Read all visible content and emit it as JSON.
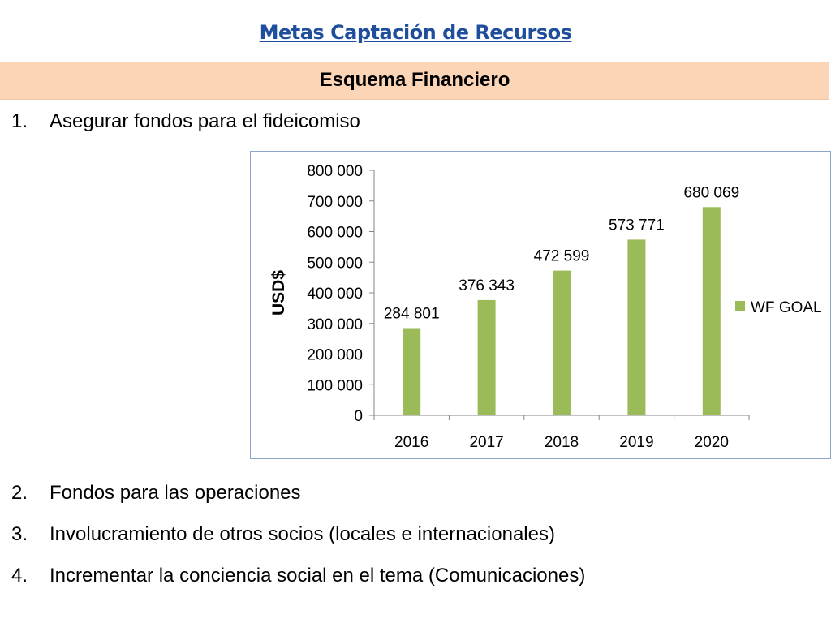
{
  "page": {
    "title": "Metas Captación de Recursos",
    "section_header": "Esquema Financiero"
  },
  "list": [
    {
      "number": "1.",
      "text": "Asegurar fondos para el fideicomiso"
    },
    {
      "number": "2.",
      "text": "Fondos para las operaciones"
    },
    {
      "number": "3.",
      "text": "Involucramiento de otros socios (locales e internacionales)"
    },
    {
      "number": "4.",
      "text": "Incrementar la conciencia social en el tema (Comunicaciones)"
    }
  ],
  "colors": {
    "title": "#1f4e9c",
    "section_bar": "#fbd5b5",
    "bar": "#9bbb59",
    "chart_border": "#8ea6c9"
  },
  "chart_data": {
    "type": "bar",
    "categories": [
      "2016",
      "2017",
      "2018",
      "2019",
      "2020"
    ],
    "series": [
      {
        "name": "WF GOAL",
        "values": [
          284801,
          376343,
          472599,
          573771,
          680069
        ],
        "labels": [
          "284 801",
          "376 343",
          "472 599",
          "573 771",
          "680 069"
        ]
      }
    ],
    "ylabel": "USD$",
    "xlabel": "",
    "ylim": [
      0,
      800000
    ],
    "yticks": [
      0,
      100000,
      200000,
      300000,
      400000,
      500000,
      600000,
      700000,
      800000
    ],
    "ytick_labels": [
      "0",
      "100 000",
      "200 000",
      "300 000",
      "400 000",
      "500 000",
      "600 000",
      "700 000",
      "800 000"
    ],
    "grid": false,
    "legend_position": "right"
  }
}
